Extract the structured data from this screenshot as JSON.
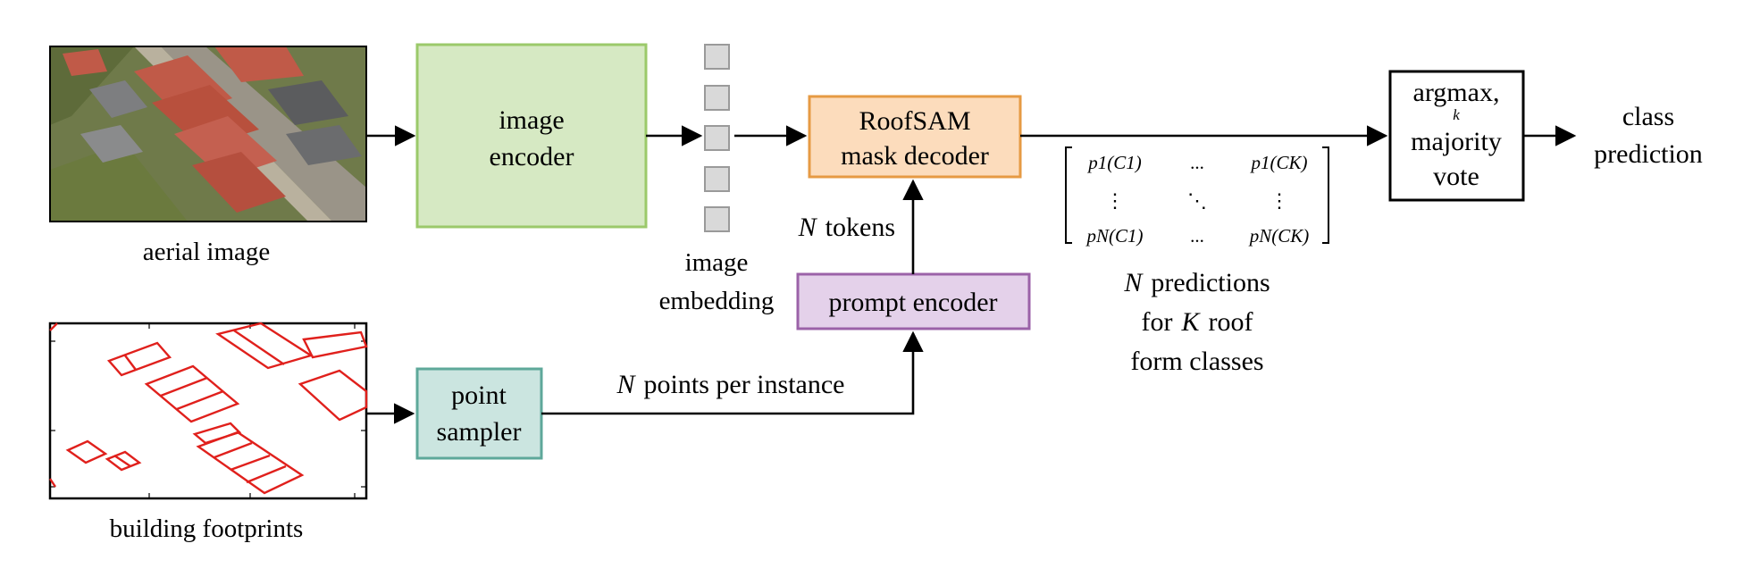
{
  "inputs": {
    "aerial_label": "aerial image",
    "footprints_label": "building footprints"
  },
  "nodes": {
    "image_encoder": {
      "line1": "image",
      "line2": "encoder",
      "fill": "#d6e9c3",
      "stroke": "#9bc96a"
    },
    "mask_decoder": {
      "line1": "RoofSAM",
      "line2": "mask decoder",
      "fill": "#fcdcbc",
      "stroke": "#e69a43"
    },
    "prompt_encoder": {
      "label": "prompt encoder",
      "fill": "#e4d1ea",
      "stroke": "#9b62a8"
    },
    "point_sampler": {
      "line1": "point",
      "line2": "sampler",
      "fill": "#cbe5e0",
      "stroke": "#5ea89a"
    },
    "argmax": {
      "line1": "argmax,",
      "sub": "k",
      "line2": "majority",
      "line3": "vote"
    }
  },
  "embedding": {
    "line1": "image",
    "line2": "embedding",
    "fill": "#d9d9d9",
    "stroke": "#9a9a9a"
  },
  "edges": {
    "tokens_var": "N",
    "tokens_word": "tokens",
    "points_var": "N",
    "points_word": "points per instance"
  },
  "matrix": {
    "r1c1": "p1(C1)",
    "r1c2": "...",
    "r1c3": "p1(CK)",
    "r2c1": "⋮",
    "r2c2": "⋱",
    "r2c3": "⋮",
    "r3c1": "pN(C1)",
    "r3c2": "...",
    "r3c3": "pN(CK)"
  },
  "predictions": {
    "var_n": "N",
    "word1": "predictions",
    "word2": "for",
    "var_k": "K",
    "word3": "roof",
    "line3": "form classes"
  },
  "output": {
    "line1": "class",
    "line2": "prediction"
  }
}
